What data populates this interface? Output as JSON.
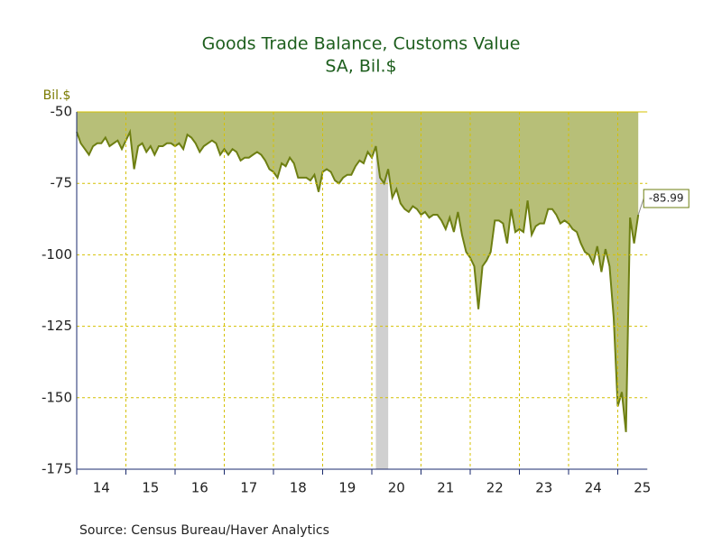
{
  "chart_data": {
    "type": "area",
    "title": "Goods Trade Balance, Customs Value",
    "subtitle": "SA, Bil.$",
    "y_label": "Bil.$",
    "source": "Source:  Census Bureau/Haver Analytics",
    "series": [
      {
        "name": "Goods Trade Balance",
        "color": "#6e7f12",
        "fill": "#b7bf78",
        "x": [
          14,
          14.083,
          14.167,
          14.25,
          14.333,
          14.417,
          14.5,
          14.583,
          14.667,
          14.75,
          14.833,
          14.917,
          15,
          15.083,
          15.167,
          15.25,
          15.333,
          15.417,
          15.5,
          15.583,
          15.667,
          15.75,
          15.833,
          15.917,
          16,
          16.083,
          16.167,
          16.25,
          16.333,
          16.417,
          16.5,
          16.583,
          16.667,
          16.75,
          16.833,
          16.917,
          17,
          17.083,
          17.167,
          17.25,
          17.333,
          17.417,
          17.5,
          17.583,
          17.667,
          17.75,
          17.833,
          17.917,
          18,
          18.083,
          18.167,
          18.25,
          18.333,
          18.417,
          18.5,
          18.583,
          18.667,
          18.75,
          18.833,
          18.917,
          19,
          19.083,
          19.167,
          19.25,
          19.333,
          19.417,
          19.5,
          19.583,
          19.667,
          19.75,
          19.833,
          19.917,
          20,
          20.083,
          20.167,
          20.25,
          20.333,
          20.417,
          20.5,
          20.583,
          20.667,
          20.75,
          20.833,
          20.917,
          21,
          21.083,
          21.167,
          21.25,
          21.333,
          21.417,
          21.5,
          21.583,
          21.667,
          21.75,
          21.833,
          21.917,
          22,
          22.083,
          22.167,
          22.25,
          22.333,
          22.417,
          22.5,
          22.583,
          22.667,
          22.75,
          22.833,
          22.917,
          23,
          23.083,
          23.167,
          23.25,
          23.333,
          23.417,
          23.5,
          23.583,
          23.667,
          23.75,
          23.833,
          23.917,
          24,
          24.083,
          24.167,
          24.25,
          24.333,
          24.417,
          24.5,
          24.583,
          24.667,
          24.75,
          24.833,
          24.917,
          25,
          25.083,
          25.167,
          25.25,
          25.333,
          25.417
        ],
        "values": [
          -57,
          -61,
          -63,
          -65,
          -62,
          -61,
          -61,
          -59,
          -62,
          -61,
          -60,
          -63,
          -60,
          -57,
          -70,
          -62,
          -61,
          -64,
          -62,
          -65,
          -62,
          -62,
          -61,
          -61,
          -62,
          -61,
          -63,
          -58,
          -59,
          -61,
          -64,
          -62,
          -61,
          -60,
          -61,
          -65,
          -63,
          -65,
          -63,
          -64,
          -67,
          -66,
          -66,
          -65,
          -64,
          -65,
          -67,
          -70,
          -71,
          -73,
          -68,
          -69,
          -66,
          -68,
          -73,
          -73,
          -73,
          -74,
          -72,
          -78,
          -71,
          -70,
          -71,
          -74,
          -75,
          -73,
          -72,
          -72,
          -69,
          -67,
          -68,
          -64,
          -66,
          -62,
          -73,
          -75,
          -70,
          -80,
          -77,
          -82,
          -84,
          -85,
          -83,
          -84,
          -86,
          -85,
          -87,
          -86,
          -86,
          -88,
          -91,
          -87,
          -92,
          -85,
          -93,
          -99,
          -101,
          -104,
          -119,
          -104,
          -102,
          -99,
          -88,
          -88,
          -89,
          -96,
          -84,
          -92,
          -91,
          -92,
          -81,
          -93,
          -90,
          -89,
          -89,
          -84,
          -84,
          -86,
          -89,
          -88,
          -89,
          -91,
          -92,
          -96,
          -99,
          -100,
          -103,
          -97,
          -106,
          -98,
          -104,
          -122,
          -153,
          -148,
          -162,
          -87,
          -96,
          -85.99
        ]
      }
    ],
    "recession": [
      20.083,
      20.333
    ],
    "xlim": [
      14,
      25.6
    ],
    "xticks": [
      14,
      15,
      16,
      17,
      18,
      19,
      20,
      21,
      22,
      23,
      24,
      25
    ],
    "ylim": [
      -175,
      -50
    ],
    "yticks": [
      -50,
      -75,
      -100,
      -125,
      -150,
      -175
    ],
    "grid": true
  }
}
